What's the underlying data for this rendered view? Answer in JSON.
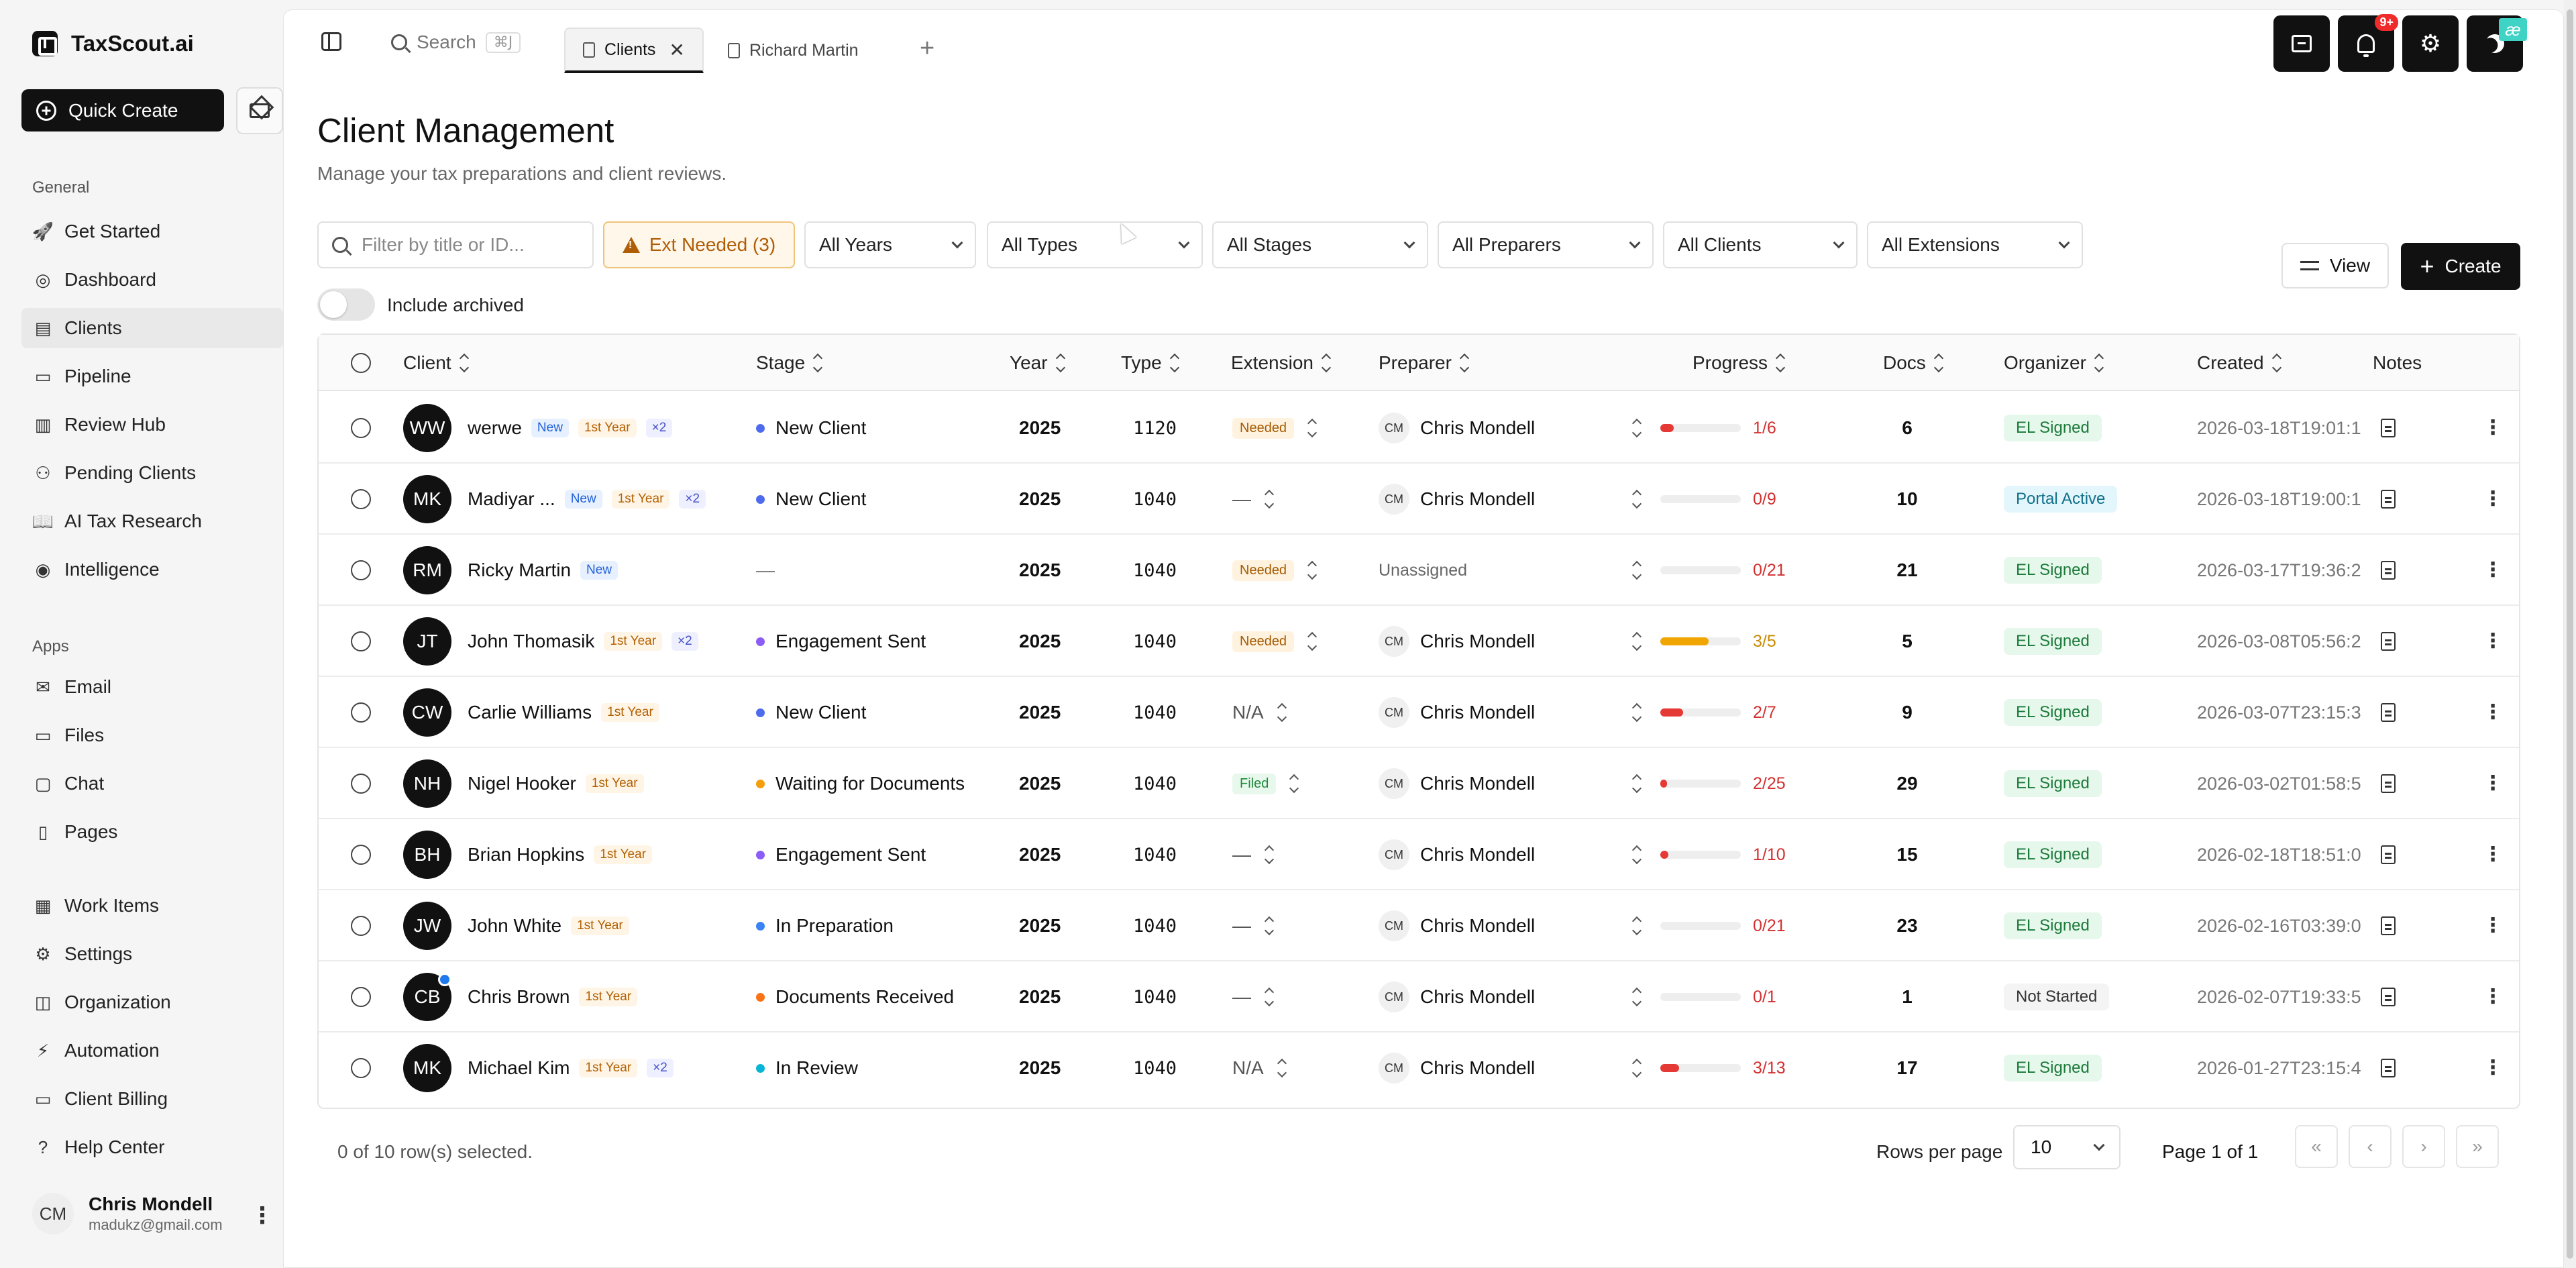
{
  "brand": {
    "name": "TaxScout.ai"
  },
  "sidebar": {
    "quick_create": "Quick Create",
    "sections": {
      "general": "General",
      "apps": "Apps"
    },
    "general_items": [
      {
        "label": "Get Started",
        "icon": "rocket-icon"
      },
      {
        "label": "Dashboard",
        "icon": "dashboard-icon"
      },
      {
        "label": "Clients",
        "icon": "file-icon",
        "active": true
      },
      {
        "label": "Pipeline",
        "icon": "pipeline-icon"
      },
      {
        "label": "Review Hub",
        "icon": "clipboard-icon"
      },
      {
        "label": "Pending Clients",
        "icon": "user-plus-icon"
      },
      {
        "label": "AI Tax Research",
        "icon": "book-icon"
      },
      {
        "label": "Intelligence",
        "icon": "brain-icon"
      }
    ],
    "apps_items": [
      {
        "label": "Email",
        "icon": "mail-icon"
      },
      {
        "label": "Files",
        "icon": "folder-icon"
      },
      {
        "label": "Chat",
        "icon": "chat-icon"
      },
      {
        "label": "Pages",
        "icon": "page-icon"
      }
    ],
    "other_items": [
      {
        "label": "Work Items",
        "icon": "kanban-icon"
      },
      {
        "label": "Settings",
        "icon": "gear-icon"
      },
      {
        "label": "Organization",
        "icon": "building-icon"
      },
      {
        "label": "Automation",
        "icon": "bolt-icon"
      },
      {
        "label": "Client Billing",
        "icon": "card-icon"
      },
      {
        "label": "Help Center",
        "icon": "help-icon"
      }
    ],
    "user": {
      "initials": "CM",
      "name": "Chris Mondell",
      "email": "madukz@gmail.com"
    }
  },
  "topbar": {
    "search_label": "Search",
    "search_shortcut": "⌘J",
    "tabs": [
      {
        "label": "Clients",
        "active": true
      },
      {
        "label": "Richard Martin",
        "active": false
      }
    ],
    "notifications_count": "9+",
    "extension_badge": "æ"
  },
  "page": {
    "title": "Client Management",
    "subtitle": "Manage your tax preparations and client reviews."
  },
  "filters": {
    "search_placeholder": "Filter by title or ID...",
    "ext_needed": "Ext Needed (3)",
    "years": "All Years",
    "types": "All Types",
    "stages": "All Stages",
    "preparers": "All Preparers",
    "clients": "All Clients",
    "extensions": "All Extensions",
    "include_archived": "Include archived",
    "view_label": "View",
    "create_label": "Create"
  },
  "table": {
    "columns": [
      "Client",
      "Stage",
      "Year",
      "Type",
      "Extension",
      "Preparer",
      "Progress",
      "Docs",
      "Organizer",
      "Created",
      "Notes"
    ],
    "rows": [
      {
        "initials": "WW",
        "name": "werwe",
        "tags": [
          "New",
          "1st Year",
          "×2"
        ],
        "stage": "New Client",
        "stage_color": "#4f6bed",
        "year": "2025",
        "type": "1120",
        "extension": "Needed",
        "preparer_initials": "CM",
        "preparer": "Chris Mondell",
        "progress_text": "1/6",
        "progress": 0.167,
        "progress_color": "#e53935",
        "docs": "6",
        "organizer": "EL Signed",
        "created": "2026-03-18T19:01:1"
      },
      {
        "initials": "MK",
        "name": "Madiyar ...",
        "tags": [
          "New",
          "1st Year",
          "×2"
        ],
        "stage": "New Client",
        "stage_color": "#4f6bed",
        "year": "2025",
        "type": "1040",
        "extension": "—",
        "preparer_initials": "CM",
        "preparer": "Chris Mondell",
        "progress_text": "0/9",
        "progress": 0,
        "progress_color": "#e53935",
        "docs": "10",
        "organizer": "Portal Active",
        "created": "2026-03-18T19:00:1"
      },
      {
        "initials": "RM",
        "name": "Ricky Martin",
        "tags": [
          "New"
        ],
        "stage": "—",
        "stage_color": "",
        "year": "2025",
        "type": "1040",
        "extension": "Needed",
        "preparer_initials": "",
        "preparer": "Unassigned",
        "progress_text": "0/21",
        "progress": 0,
        "progress_color": "#e53935",
        "docs": "21",
        "organizer": "EL Signed",
        "created": "2026-03-17T19:36:2"
      },
      {
        "initials": "JT",
        "name": "John Thomasik",
        "tags": [
          "1st Year",
          "×2"
        ],
        "stage": "Engagement Sent",
        "stage_color": "#8b5cf6",
        "year": "2025",
        "type": "1040",
        "extension": "Needed",
        "preparer_initials": "CM",
        "preparer": "Chris Mondell",
        "progress_text": "3/5",
        "progress": 0.6,
        "progress_color": "#f0a500",
        "docs": "5",
        "organizer": "EL Signed",
        "created": "2026-03-08T05:56:2"
      },
      {
        "initials": "CW",
        "name": "Carlie Williams",
        "tags": [
          "1st Year"
        ],
        "stage": "New Client",
        "stage_color": "#4f6bed",
        "year": "2025",
        "type": "1040",
        "extension": "N/A",
        "preparer_initials": "CM",
        "preparer": "Chris Mondell",
        "progress_text": "2/7",
        "progress": 0.286,
        "progress_color": "#e53935",
        "docs": "9",
        "organizer": "EL Signed",
        "created": "2026-03-07T23:15:3"
      },
      {
        "initials": "NH",
        "name": "Nigel Hooker",
        "tags": [
          "1st Year"
        ],
        "stage": "Waiting for Documents",
        "stage_color": "#f59e0b",
        "year": "2025",
        "type": "1040",
        "extension": "Filed",
        "preparer_initials": "CM",
        "preparer": "Chris Mondell",
        "progress_text": "2/25",
        "progress": 0.08,
        "progress_color": "#e53935",
        "docs": "29",
        "organizer": "EL Signed",
        "created": "2026-03-02T01:58:5"
      },
      {
        "initials": "BH",
        "name": "Brian Hopkins",
        "tags": [
          "1st Year"
        ],
        "stage": "Engagement Sent",
        "stage_color": "#8b5cf6",
        "year": "2025",
        "type": "1040",
        "extension": "—",
        "preparer_initials": "CM",
        "preparer": "Chris Mondell",
        "progress_text": "1/10",
        "progress": 0.1,
        "progress_color": "#e53935",
        "docs": "15",
        "organizer": "EL Signed",
        "created": "2026-02-18T18:51:0"
      },
      {
        "initials": "JW",
        "name": "John White",
        "tags": [
          "1st Year"
        ],
        "stage": "In Preparation",
        "stage_color": "#3b82f6",
        "year": "2025",
        "type": "1040",
        "extension": "—",
        "preparer_initials": "CM",
        "preparer": "Chris Mondell",
        "progress_text": "0/21",
        "progress": 0,
        "progress_color": "#e53935",
        "docs": "23",
        "organizer": "EL Signed",
        "created": "2026-02-16T03:39:0"
      },
      {
        "initials": "CB",
        "name": "Chris Brown",
        "tags": [
          "1st Year"
        ],
        "stage": "Documents Received",
        "stage_color": "#f97316",
        "year": "2025",
        "type": "1040",
        "extension": "—",
        "preparer_initials": "CM",
        "preparer": "Chris Mondell",
        "progress_text": "0/1",
        "progress": 0,
        "progress_color": "#e53935",
        "docs": "1",
        "organizer": "Not Started",
        "created": "2026-02-07T19:33:5",
        "online": true
      },
      {
        "initials": "MK",
        "name": "Michael Kim",
        "tags": [
          "1st Year",
          "×2"
        ],
        "stage": "In Review",
        "stage_color": "#06b6d4",
        "year": "2025",
        "type": "1040",
        "extension": "N/A",
        "preparer_initials": "CM",
        "preparer": "Chris Mondell",
        "progress_text": "3/13",
        "progress": 0.23,
        "progress_color": "#e53935",
        "docs": "17",
        "organizer": "EL Signed",
        "created": "2026-01-27T23:15:4"
      }
    ]
  },
  "footer": {
    "selected": "0 of 10 row(s) selected.",
    "rows_per_page_label": "Rows per page",
    "rows_per_page": "10",
    "page_indicator": "Page 1 of 1"
  }
}
